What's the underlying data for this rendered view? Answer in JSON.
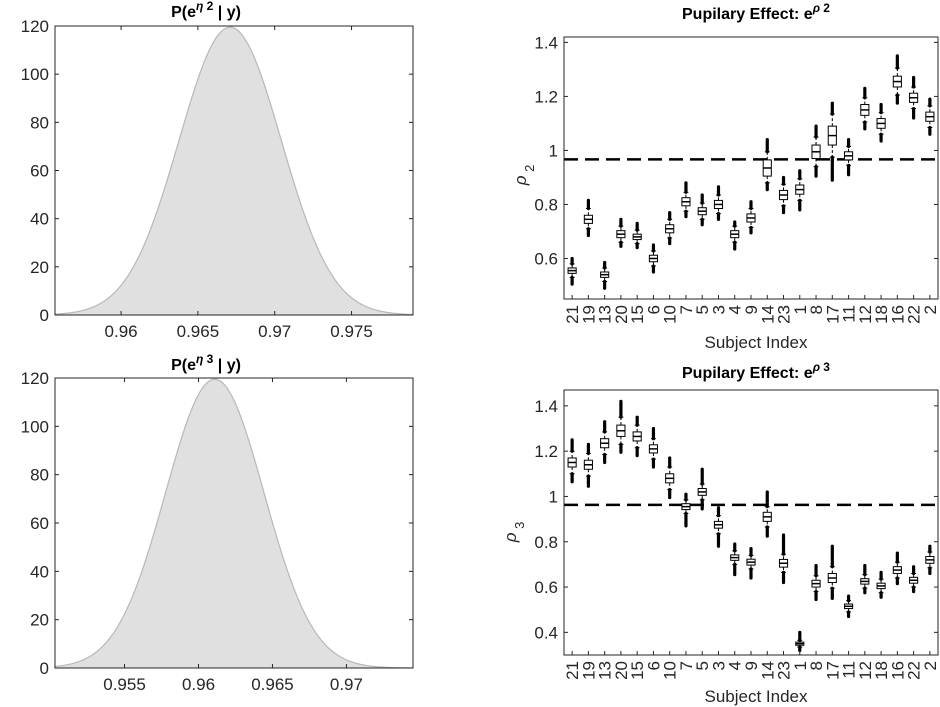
{
  "chart_data": [
    {
      "type": "area",
      "title": "P(e^{η_2} | y)",
      "title_parts": [
        "P(e",
        "η",
        " 2",
        " | y)"
      ],
      "xlabel": "",
      "ylabel": "",
      "xlim": [
        0.9557,
        0.979
      ],
      "ylim": [
        0,
        120
      ],
      "xticks": [
        0.96,
        0.965,
        0.97,
        0.975
      ],
      "xtick_labels": [
        "0.96",
        "0.965",
        "0.97",
        "0.975"
      ],
      "yticks": [
        0,
        20,
        40,
        60,
        80,
        100,
        120
      ],
      "ytick_labels": [
        "0",
        "20",
        "40",
        "60",
        "80",
        "100",
        "120"
      ],
      "curve": {
        "distribution": "normal",
        "mean": 0.9671,
        "sd": 0.00333,
        "peak": 119.5
      },
      "fill": "#e0e0e0",
      "line": "#b8b8b8"
    },
    {
      "type": "box",
      "title": "Pupilary Effect: e^{ρ_2}",
      "title_parts": [
        "Pupilary Effect: e",
        "ρ",
        " 2"
      ],
      "xlabel": "Subject Index",
      "ylabel_parts": [
        "ρ",
        " 2"
      ],
      "ylim": [
        0.45,
        1.42
      ],
      "yticks": [
        0.6,
        0.8,
        1,
        1.2,
        1.4
      ],
      "ytick_labels": [
        "0.6",
        "0.8",
        "1",
        "1.2",
        "1.4"
      ],
      "reference_line": 0.967,
      "categories": [
        "21",
        "19",
        "13",
        "20",
        "15",
        "6",
        "10",
        "7",
        "5",
        "3",
        "4",
        "9",
        "14",
        "23",
        "1",
        "8",
        "17",
        "11",
        "12",
        "18",
        "16",
        "22",
        "2"
      ],
      "boxes": [
        {
          "median": 0.555,
          "q1": 0.545,
          "q3": 0.565,
          "wlo": 0.53,
          "whi": 0.58,
          "olo": 0.505,
          "ohi": 0.6
        },
        {
          "median": 0.745,
          "q1": 0.73,
          "q3": 0.76,
          "wlo": 0.71,
          "whi": 0.785,
          "olo": 0.685,
          "ohi": 0.815
        },
        {
          "median": 0.54,
          "q1": 0.53,
          "q3": 0.55,
          "wlo": 0.515,
          "whi": 0.565,
          "olo": 0.49,
          "ohi": 0.585
        },
        {
          "median": 0.69,
          "q1": 0.677,
          "q3": 0.703,
          "wlo": 0.66,
          "whi": 0.72,
          "olo": 0.645,
          "ohi": 0.745
        },
        {
          "median": 0.68,
          "q1": 0.67,
          "q3": 0.69,
          "wlo": 0.655,
          "whi": 0.705,
          "olo": 0.64,
          "ohi": 0.73
        },
        {
          "median": 0.6,
          "q1": 0.588,
          "q3": 0.612,
          "wlo": 0.572,
          "whi": 0.628,
          "olo": 0.55,
          "ohi": 0.65
        },
        {
          "median": 0.71,
          "q1": 0.695,
          "q3": 0.725,
          "wlo": 0.676,
          "whi": 0.745,
          "olo": 0.655,
          "ohi": 0.77
        },
        {
          "median": 0.81,
          "q1": 0.795,
          "q3": 0.825,
          "wlo": 0.775,
          "whi": 0.845,
          "olo": 0.755,
          "ohi": 0.88
        },
        {
          "median": 0.775,
          "q1": 0.762,
          "q3": 0.788,
          "wlo": 0.745,
          "whi": 0.805,
          "olo": 0.725,
          "ohi": 0.835
        },
        {
          "median": 0.8,
          "q1": 0.785,
          "q3": 0.815,
          "wlo": 0.766,
          "whi": 0.835,
          "olo": 0.745,
          "ohi": 0.865
        },
        {
          "median": 0.69,
          "q1": 0.677,
          "q3": 0.703,
          "wlo": 0.66,
          "whi": 0.72,
          "olo": 0.635,
          "ohi": 0.735
        },
        {
          "median": 0.75,
          "q1": 0.735,
          "q3": 0.765,
          "wlo": 0.715,
          "whi": 0.785,
          "olo": 0.695,
          "ohi": 0.81
        },
        {
          "median": 0.935,
          "q1": 0.905,
          "q3": 0.965,
          "wlo": 0.88,
          "whi": 0.995,
          "olo": 0.855,
          "ohi": 1.04
        },
        {
          "median": 0.835,
          "q1": 0.818,
          "q3": 0.852,
          "wlo": 0.795,
          "whi": 0.875,
          "olo": 0.77,
          "ohi": 0.9
        },
        {
          "median": 0.855,
          "q1": 0.838,
          "q3": 0.872,
          "wlo": 0.815,
          "whi": 0.895,
          "olo": 0.78,
          "ohi": 0.925
        },
        {
          "median": 0.995,
          "q1": 0.97,
          "q3": 1.02,
          "wlo": 0.94,
          "whi": 1.05,
          "olo": 0.905,
          "ohi": 1.09
        },
        {
          "median": 1.055,
          "q1": 1.02,
          "q3": 1.09,
          "wlo": 0.975,
          "whi": 1.135,
          "olo": 0.89,
          "ohi": 1.175
        },
        {
          "median": 0.98,
          "q1": 0.965,
          "q3": 0.995,
          "wlo": 0.945,
          "whi": 1.015,
          "olo": 0.91,
          "ohi": 1.04
        },
        {
          "median": 1.15,
          "q1": 1.13,
          "q3": 1.17,
          "wlo": 1.105,
          "whi": 1.195,
          "olo": 1.08,
          "ohi": 1.23
        },
        {
          "median": 1.1,
          "q1": 1.082,
          "q3": 1.118,
          "wlo": 1.06,
          "whi": 1.14,
          "olo": 1.035,
          "ohi": 1.17
        },
        {
          "median": 1.255,
          "q1": 1.235,
          "q3": 1.275,
          "wlo": 1.205,
          "whi": 1.305,
          "olo": 1.175,
          "ohi": 1.35
        },
        {
          "median": 1.195,
          "q1": 1.178,
          "q3": 1.212,
          "wlo": 1.155,
          "whi": 1.235,
          "olo": 1.12,
          "ohi": 1.27
        },
        {
          "median": 1.125,
          "q1": 1.108,
          "q3": 1.142,
          "wlo": 1.085,
          "whi": 1.165,
          "olo": 1.06,
          "ohi": 1.19
        }
      ]
    },
    {
      "type": "area",
      "title": "P(e^{η_3} | y)",
      "title_parts": [
        "P(e",
        "η",
        " 3",
        " | y)"
      ],
      "xlabel": "",
      "ylabel": "",
      "xlim": [
        0.9503,
        0.9745
      ],
      "ylim": [
        0,
        120
      ],
      "xticks": [
        0.955,
        0.96,
        0.965,
        0.97
      ],
      "xtick_labels": [
        "0.955",
        "0.96",
        "0.965",
        "0.97"
      ],
      "yticks": [
        0,
        20,
        40,
        60,
        80,
        100,
        120
      ],
      "ytick_labels": [
        "0",
        "20",
        "40",
        "60",
        "80",
        "100",
        "120"
      ],
      "curve": {
        "distribution": "normal",
        "mean": 0.9611,
        "sd": 0.00333,
        "peak": 119.5
      },
      "fill": "#e0e0e0",
      "line": "#b8b8b8"
    },
    {
      "type": "box",
      "title": "Pupilary Effect: e^{ρ_3}",
      "title_parts": [
        "Pupilary Effect: e",
        "ρ",
        " 3"
      ],
      "xlabel": "Subject Index",
      "ylabel_parts": [
        "ρ",
        " 3"
      ],
      "ylim": [
        0.3,
        1.47
      ],
      "yticks": [
        0.4,
        0.6,
        0.8,
        1,
        1.2,
        1.4
      ],
      "ytick_labels": [
        "0.4",
        "0.6",
        "0.8",
        "1",
        "1.2",
        "1.4"
      ],
      "reference_line": 0.963,
      "categories": [
        "21",
        "19",
        "13",
        "20",
        "15",
        "6",
        "10",
        "7",
        "5",
        "3",
        "4",
        "9",
        "14",
        "23",
        "1",
        "8",
        "17",
        "11",
        "12",
        "18",
        "16",
        "22",
        "2"
      ],
      "boxes": [
        {
          "median": 1.15,
          "q1": 1.13,
          "q3": 1.17,
          "wlo": 1.1,
          "whi": 1.2,
          "olo": 1.065,
          "ohi": 1.25
        },
        {
          "median": 1.14,
          "q1": 1.12,
          "q3": 1.16,
          "wlo": 1.09,
          "whi": 1.19,
          "olo": 1.045,
          "ohi": 1.23
        },
        {
          "median": 1.235,
          "q1": 1.215,
          "q3": 1.255,
          "wlo": 1.185,
          "whi": 1.285,
          "olo": 1.15,
          "ohi": 1.33
        },
        {
          "median": 1.29,
          "q1": 1.265,
          "q3": 1.315,
          "wlo": 1.23,
          "whi": 1.35,
          "olo": 1.195,
          "ohi": 1.42
        },
        {
          "median": 1.265,
          "q1": 1.245,
          "q3": 1.285,
          "wlo": 1.215,
          "whi": 1.315,
          "olo": 1.18,
          "ohi": 1.35
        },
        {
          "median": 1.21,
          "q1": 1.192,
          "q3": 1.228,
          "wlo": 1.165,
          "whi": 1.255,
          "olo": 1.13,
          "ohi": 1.3
        },
        {
          "median": 1.08,
          "q1": 1.06,
          "q3": 1.1,
          "wlo": 1.03,
          "whi": 1.13,
          "olo": 0.995,
          "ohi": 1.17
        },
        {
          "median": 0.955,
          "q1": 0.942,
          "q3": 0.968,
          "wlo": 0.925,
          "whi": 0.985,
          "olo": 0.87,
          "ohi": 1.01
        },
        {
          "median": 1.02,
          "q1": 1.005,
          "q3": 1.035,
          "wlo": 0.985,
          "whi": 1.055,
          "olo": 0.945,
          "ohi": 1.12
        },
        {
          "median": 0.875,
          "q1": 0.86,
          "q3": 0.89,
          "wlo": 0.835,
          "whi": 0.915,
          "olo": 0.78,
          "ohi": 0.95
        },
        {
          "median": 0.73,
          "q1": 0.718,
          "q3": 0.742,
          "wlo": 0.7,
          "whi": 0.76,
          "olo": 0.655,
          "ohi": 0.79
        },
        {
          "median": 0.71,
          "q1": 0.697,
          "q3": 0.723,
          "wlo": 0.68,
          "whi": 0.74,
          "olo": 0.64,
          "ohi": 0.77
        },
        {
          "median": 0.91,
          "q1": 0.89,
          "q3": 0.93,
          "wlo": 0.865,
          "whi": 0.955,
          "olo": 0.825,
          "ohi": 1.02
        },
        {
          "median": 0.705,
          "q1": 0.688,
          "q3": 0.722,
          "wlo": 0.665,
          "whi": 0.745,
          "olo": 0.62,
          "ohi": 0.83
        },
        {
          "median": 0.35,
          "q1": 0.343,
          "q3": 0.357,
          "wlo": 0.335,
          "whi": 0.365,
          "olo": 0.32,
          "ohi": 0.4
        },
        {
          "median": 0.615,
          "q1": 0.6,
          "q3": 0.63,
          "wlo": 0.58,
          "whi": 0.65,
          "olo": 0.545,
          "ohi": 0.695
        },
        {
          "median": 0.64,
          "q1": 0.62,
          "q3": 0.66,
          "wlo": 0.595,
          "whi": 0.69,
          "olo": 0.55,
          "ohi": 0.78
        },
        {
          "median": 0.515,
          "q1": 0.505,
          "q3": 0.525,
          "wlo": 0.49,
          "whi": 0.54,
          "olo": 0.47,
          "ohi": 0.56
        },
        {
          "median": 0.625,
          "q1": 0.613,
          "q3": 0.637,
          "wlo": 0.595,
          "whi": 0.655,
          "olo": 0.575,
          "ohi": 0.695
        },
        {
          "median": 0.605,
          "q1": 0.593,
          "q3": 0.617,
          "wlo": 0.575,
          "whi": 0.635,
          "olo": 0.555,
          "ohi": 0.665
        },
        {
          "median": 0.675,
          "q1": 0.66,
          "q3": 0.69,
          "wlo": 0.64,
          "whi": 0.71,
          "olo": 0.615,
          "ohi": 0.75
        },
        {
          "median": 0.63,
          "q1": 0.617,
          "q3": 0.643,
          "wlo": 0.6,
          "whi": 0.66,
          "olo": 0.58,
          "ohi": 0.69
        },
        {
          "median": 0.72,
          "q1": 0.705,
          "q3": 0.735,
          "wlo": 0.685,
          "whi": 0.755,
          "olo": 0.66,
          "ohi": 0.78
        }
      ]
    }
  ]
}
